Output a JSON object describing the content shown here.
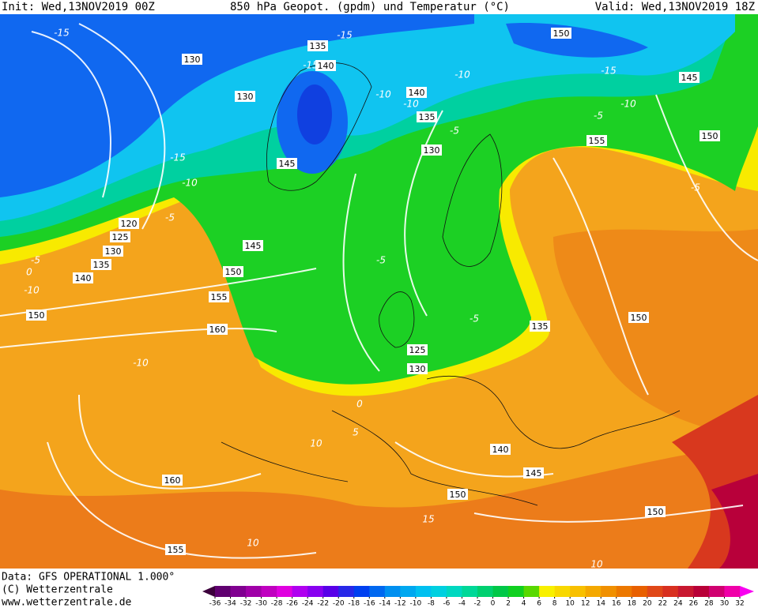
{
  "header": {
    "init": "Init: Wed,13NOV2019 00Z",
    "title": "850 hPa Geopot. (gpdm) und Temperatur (°C)",
    "valid": "Valid: Wed,13NOV2019 18Z"
  },
  "geopotential_labels": [
    150,
    135,
    140,
    130,
    130,
    140,
    145,
    135,
    130,
    150,
    155,
    145,
    120,
    125,
    130,
    135,
    140,
    145,
    150,
    155,
    150,
    160,
    150,
    135,
    125,
    130,
    140,
    145,
    150,
    160,
    150,
    155
  ],
  "temperature_labels": [
    -15,
    -15,
    -15,
    -10,
    -15,
    -10,
    -10,
    -10,
    -5,
    -5,
    -15,
    -10,
    -5,
    -5,
    -5,
    0,
    -10,
    -5,
    -5,
    0,
    5,
    -10,
    10,
    10,
    15,
    10
  ],
  "colorbar": {
    "ticks": [
      -36,
      -34,
      -32,
      -30,
      -28,
      -26,
      -24,
      -22,
      -20,
      -18,
      -16,
      -14,
      -12,
      -10,
      -8,
      -6,
      -4,
      -2,
      0,
      2,
      4,
      6,
      8,
      10,
      12,
      14,
      16,
      18,
      20,
      22,
      24,
      26,
      28,
      30,
      32
    ],
    "colors": [
      "#3c003c",
      "#600070",
      "#800090",
      "#a000a8",
      "#c000c0",
      "#e000e0",
      "#b000f0",
      "#8800f0",
      "#5800e8",
      "#2828e8",
      "#0040f0",
      "#0068f0",
      "#0090f0",
      "#00a8f0",
      "#00c0f0",
      "#00d0e0",
      "#00d8c0",
      "#00d898",
      "#00d070",
      "#00c848",
      "#10d020",
      "#58d800",
      "#f8f000",
      "#f8d800",
      "#f8c000",
      "#f4a800",
      "#f09000",
      "#ec7800",
      "#e86000",
      "#e04818",
      "#d83020",
      "#c81830",
      "#b80038",
      "#d00070",
      "#f000a8",
      "#f800f0"
    ]
  },
  "footer": {
    "data": "Data: GFS OPERATIONAL 1.000°",
    "copyright": "(C) Wetterzentrale",
    "url": "www.wetterzentrale.de"
  }
}
